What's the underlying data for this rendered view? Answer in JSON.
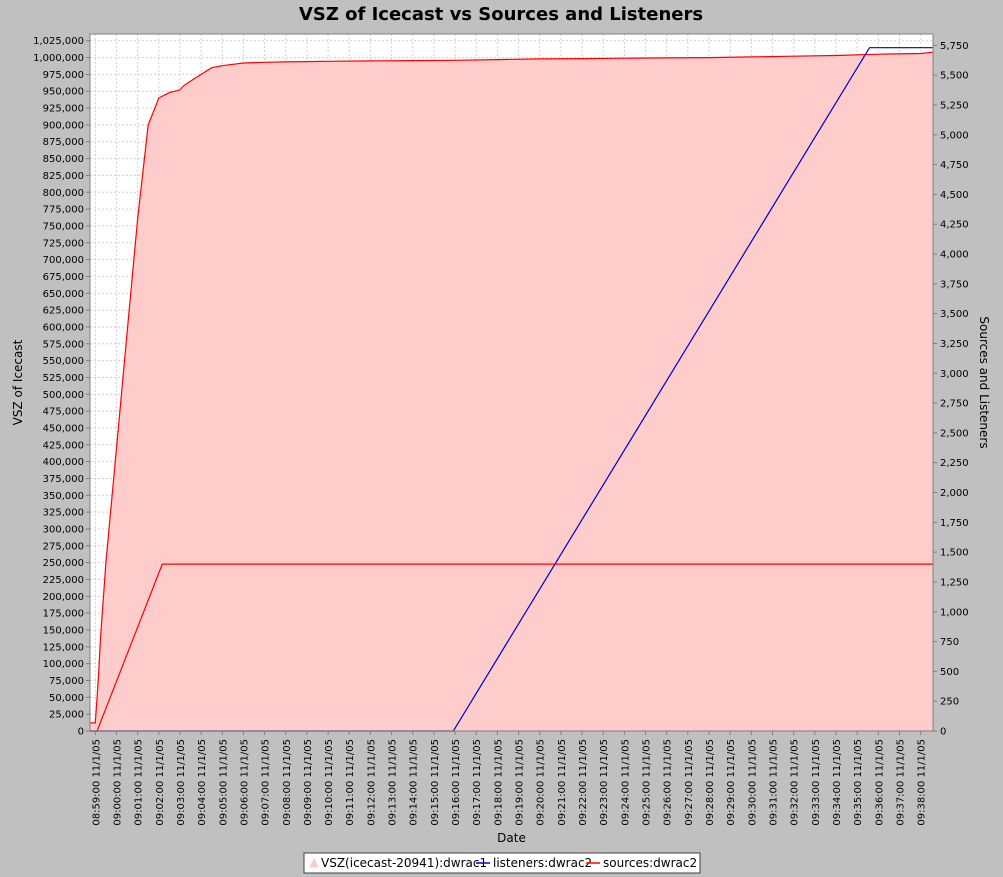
{
  "chart_data": {
    "type": "line",
    "title": "VSZ of Icecast vs Sources and Listeners",
    "xlabel": "Date",
    "ylabel": "VSZ of Icecast",
    "y2label": "Sources and Listeners",
    "x_ticks": [
      "08:59:00 11/1/05",
      "09:00:00 11/1/05",
      "09:01:00 11/1/05",
      "09:02:00 11/1/05",
      "09:03:00 11/1/05",
      "09:04:00 11/1/05",
      "09:05:00 11/1/05",
      "09:06:00 11/1/05",
      "09:07:00 11/1/05",
      "09:08:00 11/1/05",
      "09:09:00 11/1/05",
      "09:10:00 11/1/05",
      "09:11:00 11/1/05",
      "09:12:00 11/1/05",
      "09:13:00 11/1/05",
      "09:14:00 11/1/05",
      "09:15:00 11/1/05",
      "09:16:00 11/1/05",
      "09:17:00 11/1/05",
      "09:18:00 11/1/05",
      "09:19:00 11/1/05",
      "09:20:00 11/1/05",
      "09:21:00 11/1/05",
      "09:22:00 11/1/05",
      "09:23:00 11/1/05",
      "09:24:00 11/1/05",
      "09:25:00 11/1/05",
      "09:26:00 11/1/05",
      "09:27:00 11/1/05",
      "09:28:00 11/1/05",
      "09:29:00 11/1/05",
      "09:30:00 11/1/05",
      "09:31:00 11/1/05",
      "09:32:00 11/1/05",
      "09:33:00 11/1/05",
      "09:34:00 11/1/05",
      "09:35:00 11/1/05",
      "09:36:00 11/1/05",
      "09:37:00 11/1/05",
      "09:38:00 11/1/05"
    ],
    "xlim": [
      "08:58:45 11/1/05",
      "09:38:35 11/1/05"
    ],
    "ylim": [
      0,
      1035000
    ],
    "y2lim": [
      0,
      5845
    ],
    "y_ticks": [
      "0",
      "25,000",
      "50,000",
      "75,000",
      "100,000",
      "125,000",
      "150,000",
      "175,000",
      "200,000",
      "225,000",
      "250,000",
      "275,000",
      "300,000",
      "325,000",
      "350,000",
      "375,000",
      "400,000",
      "425,000",
      "450,000",
      "475,000",
      "500,000",
      "525,000",
      "550,000",
      "575,000",
      "600,000",
      "625,000",
      "650,000",
      "675,000",
      "700,000",
      "725,000",
      "750,000",
      "775,000",
      "800,000",
      "825,000",
      "850,000",
      "875,000",
      "900,000",
      "925,000",
      "950,000",
      "975,000",
      "1,000,000",
      "1,025,000"
    ],
    "y2_ticks": [
      "0",
      "250",
      "500",
      "750",
      "1,000",
      "1,250",
      "1,500",
      "1,750",
      "2,000",
      "2,250",
      "2,500",
      "2,750",
      "3,000",
      "3,250",
      "3,500",
      "3,750",
      "4,000",
      "4,250",
      "4,500",
      "4,750",
      "5,000",
      "5,250",
      "5,500",
      "5,750"
    ],
    "grid": true,
    "legend_position": "bottom",
    "series": [
      {
        "name": "VSZ(icecast-20941):dwrac1",
        "axis": "left",
        "style": "area",
        "color": "#ff0000",
        "fill": "#ffcccc",
        "x": [
          "08:58:45 11/1/05",
          "08:59:00 11/1/05",
          "08:59:05 11/1/05",
          "08:59:10 11/1/05",
          "08:59:15 11/1/05",
          "08:59:30 11/1/05",
          "09:00:00 11/1/05",
          "09:00:30 11/1/05",
          "09:01:00 11/1/05",
          "09:01:30 11/1/05",
          "09:02:00 11/1/05",
          "09:02:30 11/1/05",
          "09:03:00 11/1/05",
          "09:03:10 11/1/05",
          "09:03:30 11/1/05",
          "09:04:00 11/1/05",
          "09:04:30 11/1/05",
          "09:05:00 11/1/05",
          "09:05:30 11/1/05",
          "09:06:00 11/1/05",
          "09:07:00 11/1/05",
          "09:08:00 11/1/05",
          "09:09:00 11/1/05",
          "09:10:00 11/1/05",
          "09:12:00 11/1/05",
          "09:14:00 11/1/05",
          "09:16:00 11/1/05",
          "09:18:00 11/1/05",
          "09:20:00 11/1/05",
          "09:22:00 11/1/05",
          "09:24:00 11/1/05",
          "09:26:00 11/1/05",
          "09:28:00 11/1/05",
          "09:30:00 11/1/05",
          "09:32:00 11/1/05",
          "09:34:00 11/1/05",
          "09:36:00 11/1/05",
          "09:38:00 11/1/05",
          "09:38:35 11/1/05"
        ],
        "values": [
          12000,
          12000,
          50000,
          90000,
          140000,
          250000,
          420000,
          590000,
          760000,
          900000,
          940000,
          948000,
          952000,
          958000,
          965000,
          975000,
          985000,
          988000,
          990000,
          992000,
          993000,
          993500,
          994000,
          994500,
          995000,
          995500,
          996000,
          997000,
          998000,
          998500,
          999000,
          999500,
          1000000,
          1001000,
          1002000,
          1003000,
          1005000,
          1006000,
          1008000
        ]
      },
      {
        "name": "listeners:dwrac2",
        "axis": "right",
        "style": "line",
        "color": "#0000cc",
        "x": [
          "08:58:45 11/1/05",
          "09:15:55 11/1/05",
          "09:35:35 11/1/05",
          "09:38:35 11/1/05"
        ],
        "values": [
          0,
          0,
          5730,
          5730
        ]
      },
      {
        "name": "sources:dwrac2",
        "axis": "right",
        "style": "line",
        "color": "#ff0000",
        "x": [
          "08:58:45 11/1/05",
          "08:59:05 11/1/05",
          "09:02:10 11/1/05",
          "09:38:35 11/1/05"
        ],
        "values": [
          0,
          0,
          1400,
          1400
        ]
      }
    ]
  }
}
